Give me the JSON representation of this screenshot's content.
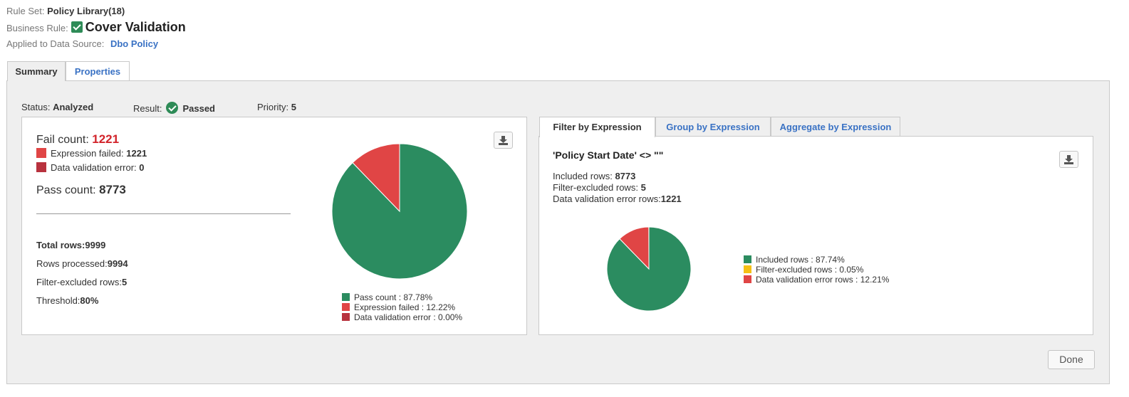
{
  "header": {
    "rule_set_label": "Rule Set:",
    "rule_set_value": "Policy Library(18)",
    "business_rule_label": "Business Rule:",
    "business_rule_value": "Cover Validation",
    "data_source_label": "Applied to Data Source:",
    "data_source_value": "Dbo Policy"
  },
  "tabs": [
    {
      "label": "Summary",
      "active": true
    },
    {
      "label": "Properties",
      "active": false
    }
  ],
  "status": {
    "status_label": "Status:",
    "status_value": "Analyzed",
    "result_label": "Result:",
    "result_value": "Passed",
    "priority_label": "Priority:",
    "priority_value": "5"
  },
  "summary": {
    "fail_count_label": "Fail count:",
    "fail_count_value": "1221",
    "expression_failed_label": "Expression failed:",
    "expression_failed_value": "1221",
    "data_validation_error_label": "Data validation error:",
    "data_validation_error_value": "0",
    "pass_count_label": "Pass count:",
    "pass_count_value": "8773",
    "total_rows_label": "Total rows:",
    "total_rows_value": "9999",
    "rows_processed_label": "Rows processed:",
    "rows_processed_value": "9994",
    "filter_excluded_label": "Filter-excluded rows:",
    "filter_excluded_value": "5",
    "threshold_label": "Threshold:",
    "threshold_value": "80%",
    "download_icon": "download-icon"
  },
  "expression_panel": {
    "subtabs": [
      {
        "label": "Filter by Expression",
        "active": true
      },
      {
        "label": "Group by Expression",
        "active": false
      },
      {
        "label": "Aggregate by Expression",
        "active": false
      }
    ],
    "expression": "'Policy Start Date' <> \"\"",
    "included_rows_label": "Included rows:",
    "included_rows_value": "8773",
    "filter_excluded_label": "Filter-excluded rows:",
    "filter_excluded_value": "5",
    "dv_error_rows_label": "Data validation error rows:",
    "dv_error_rows_value": "1221",
    "download_icon": "download-icon"
  },
  "buttons": {
    "done_label": "Done"
  },
  "colors": {
    "pass": "#2b8c60",
    "fail": "#e04545",
    "dv_error": "#b8323e",
    "excluded": "#f5c015"
  },
  "chart_data": [
    {
      "type": "pie",
      "series": [
        {
          "label": "Pass count : 87.78%",
          "value": 87.78,
          "color": "#2b8c60"
        },
        {
          "label": "Expression failed : 12.22%",
          "value": 12.22,
          "color": "#e04545"
        },
        {
          "label": "Data validation error : 0.00%",
          "value": 0.0,
          "color": "#b8323e"
        }
      ]
    },
    {
      "type": "pie",
      "series": [
        {
          "label": "Included rows : 87.74%",
          "value": 87.74,
          "color": "#2b8c60"
        },
        {
          "label": "Filter-excluded rows : 0.05%",
          "value": 0.05,
          "color": "#f5c015"
        },
        {
          "label": "Data validation error rows : 12.21%",
          "value": 12.21,
          "color": "#e04545"
        }
      ]
    }
  ]
}
